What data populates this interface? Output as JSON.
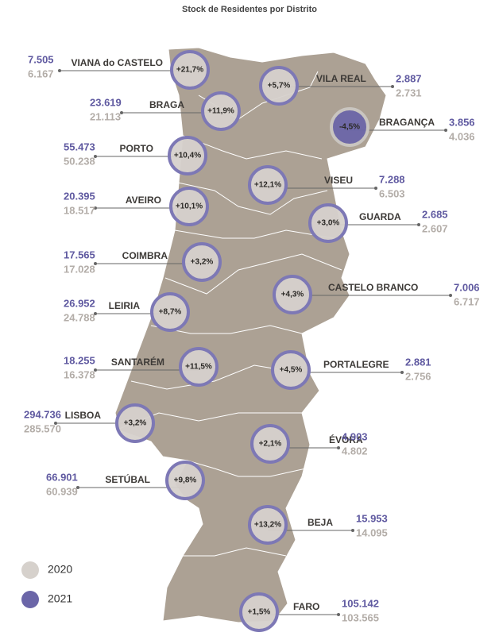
{
  "title": "Stock de Residentes por Distrito",
  "districts": [
    {
      "name": "VIANA do CASTELO",
      "change": "+21,7%",
      "v2021": "7.505",
      "v2020": "6.167"
    },
    {
      "name": "VILA REAL",
      "change": "+5,7%",
      "v2021": "2.887",
      "v2020": "2.731"
    },
    {
      "name": "BRAGA",
      "change": "+11,9%",
      "v2021": "23.619",
      "v2020": "21.113"
    },
    {
      "name": "BRAGANÇA",
      "change": "-4,5%",
      "v2021": "3.856",
      "v2020": "4.036"
    },
    {
      "name": "PORTO",
      "change": "+10,4%",
      "v2021": "55.473",
      "v2020": "50.238"
    },
    {
      "name": "VISEU",
      "change": "+12,1%",
      "v2021": "7.288",
      "v2020": "6.503"
    },
    {
      "name": "AVEIRO",
      "change": "+10,1%",
      "v2021": "20.395",
      "v2020": "18.517"
    },
    {
      "name": "GUARDA",
      "change": "+3,0%",
      "v2021": "2.685",
      "v2020": "2.607"
    },
    {
      "name": "COIMBRA",
      "change": "+3,2%",
      "v2021": "17.565",
      "v2020": "17.028"
    },
    {
      "name": "CASTELO BRANCO",
      "change": "+4,3%",
      "v2021": "7.006",
      "v2020": "6.717"
    },
    {
      "name": "LEIRIA",
      "change": "+8,7%",
      "v2021": "26.952",
      "v2020": "24.788"
    },
    {
      "name": "SANTARÉM",
      "change": "+11,5%",
      "v2021": "18.255",
      "v2020": "16.378"
    },
    {
      "name": "PORTALEGRE",
      "change": "+4,5%",
      "v2021": "2.881",
      "v2020": "2.756"
    },
    {
      "name": "LISBOA",
      "change": "+3,2%",
      "v2021": "294.736",
      "v2020": "285.570"
    },
    {
      "name": "ÉVORA",
      "change": "+2,1%",
      "v2021": "4.903",
      "v2020": "4.802"
    },
    {
      "name": "SETÚBAL",
      "change": "+9,8%",
      "v2021": "66.901",
      "v2020": "60.939"
    },
    {
      "name": "BEJA",
      "change": "+13,2%",
      "v2021": "15.953",
      "v2020": "14.095"
    },
    {
      "name": "FARO",
      "change": "+1,5%",
      "v2021": "105.142",
      "v2020": "103.565"
    }
  ],
  "legend": [
    "2020",
    "2021"
  ]
}
